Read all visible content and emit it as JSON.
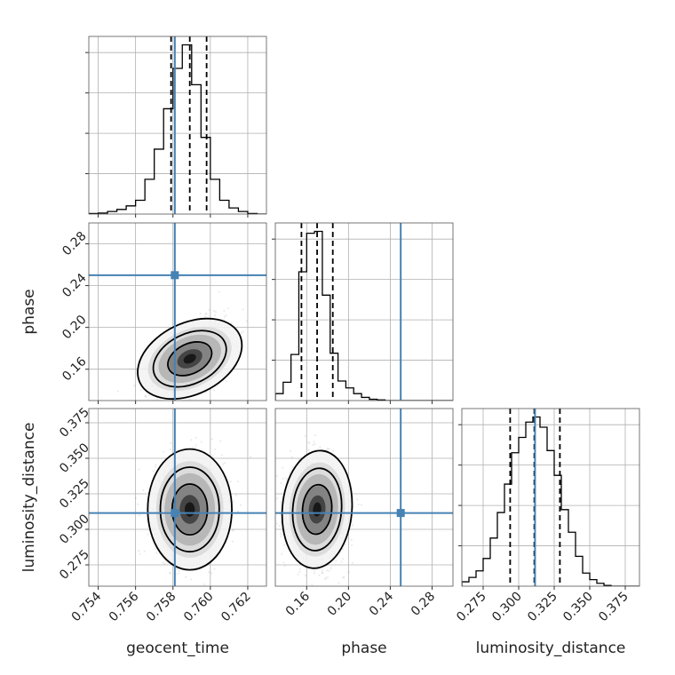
{
  "chart_data": {
    "type": "corner",
    "truth_color": "#4682b4",
    "line_color": "#000000",
    "grid": true,
    "parameters": [
      {
        "name": "geocent_time",
        "label": "geocent_time",
        "range": [
          0.7535,
          0.763
        ],
        "ticks": [
          0.754,
          0.756,
          0.758,
          0.76,
          0.762
        ],
        "tick_labels": [
          "0.754",
          "0.756",
          "0.758",
          "0.760",
          "0.762"
        ],
        "truth": 0.7581,
        "quantiles": [
          0.7579,
          0.7589,
          0.7598
        ]
      },
      {
        "name": "phase",
        "label": "phase",
        "range": [
          0.13,
          0.3
        ],
        "ticks": [
          0.16,
          0.2,
          0.24,
          0.28
        ],
        "tick_labels": [
          "0.16",
          "0.20",
          "0.24",
          "0.28"
        ],
        "truth": 0.25,
        "quantiles": [
          0.155,
          0.17,
          0.185
        ]
      },
      {
        "name": "luminosity_distance",
        "label": "luminosity_distance",
        "range": [
          0.26,
          0.385
        ],
        "ticks": [
          0.275,
          0.3,
          0.325,
          0.35,
          0.375
        ],
        "tick_labels": [
          "0.275",
          "0.300",
          "0.325",
          "0.350",
          "0.375"
        ],
        "truth": 0.3115,
        "quantiles": [
          0.294,
          0.311,
          0.329
        ]
      }
    ],
    "histograms": [
      {
        "param": "geocent_time",
        "bin_edges": [
          0.7535,
          0.754,
          0.7545,
          0.755,
          0.7555,
          0.756,
          0.7565,
          0.757,
          0.7575,
          0.758,
          0.7585,
          0.759,
          0.7595,
          0.76,
          0.7605,
          0.761,
          0.7615,
          0.762,
          0.7625,
          0.763
        ],
        "counts": [
          1,
          2,
          5,
          9,
          16,
          27,
          68,
          127,
          206,
          285,
          331,
          253,
          150,
          68,
          27,
          12,
          5,
          1,
          0
        ]
      },
      {
        "param": "phase",
        "bin_edges": [
          0.13,
          0.1375,
          0.145,
          0.1525,
          0.16,
          0.1675,
          0.175,
          0.1825,
          0.19,
          0.1975,
          0.205,
          0.2125,
          0.22,
          0.2275,
          0.235,
          0.2425,
          0.25,
          0.2575,
          0.265,
          0.2725,
          0.28,
          0.2875,
          0.295,
          0.3
        ],
        "counts": [
          11,
          29,
          73,
          204,
          265,
          268,
          167,
          75,
          31,
          20,
          11,
          5,
          2,
          1,
          0,
          0,
          0,
          0,
          0,
          0,
          0,
          0,
          0
        ]
      },
      {
        "param": "luminosity_distance",
        "bin_edges": [
          0.26,
          0.265,
          0.27,
          0.275,
          0.28,
          0.285,
          0.29,
          0.295,
          0.3,
          0.305,
          0.31,
          0.315,
          0.32,
          0.325,
          0.33,
          0.335,
          0.34,
          0.345,
          0.35,
          0.355,
          0.36,
          0.365,
          0.37,
          0.375,
          0.38,
          0.385
        ],
        "counts": [
          6,
          12,
          21,
          38,
          66,
          101,
          140,
          183,
          204,
          225,
          232,
          218,
          186,
          152,
          105,
          74,
          41,
          18,
          9,
          4,
          1,
          0,
          0,
          0,
          0
        ]
      }
    ],
    "joint_distributions": [
      {
        "x": "geocent_time",
        "y": "phase",
        "center": [
          0.7589,
          0.17
        ],
        "spread": [
          0.00095,
          0.017
        ],
        "correlation": 0.55
      },
      {
        "x": "geocent_time",
        "y": "luminosity_distance",
        "center": [
          0.7589,
          0.314
        ],
        "spread": [
          0.0009,
          0.017
        ],
        "correlation": 0.0
      },
      {
        "x": "phase",
        "y": "luminosity_distance",
        "center": [
          0.17,
          0.314
        ],
        "spread": [
          0.013,
          0.017
        ],
        "correlation": -0.05
      }
    ]
  }
}
